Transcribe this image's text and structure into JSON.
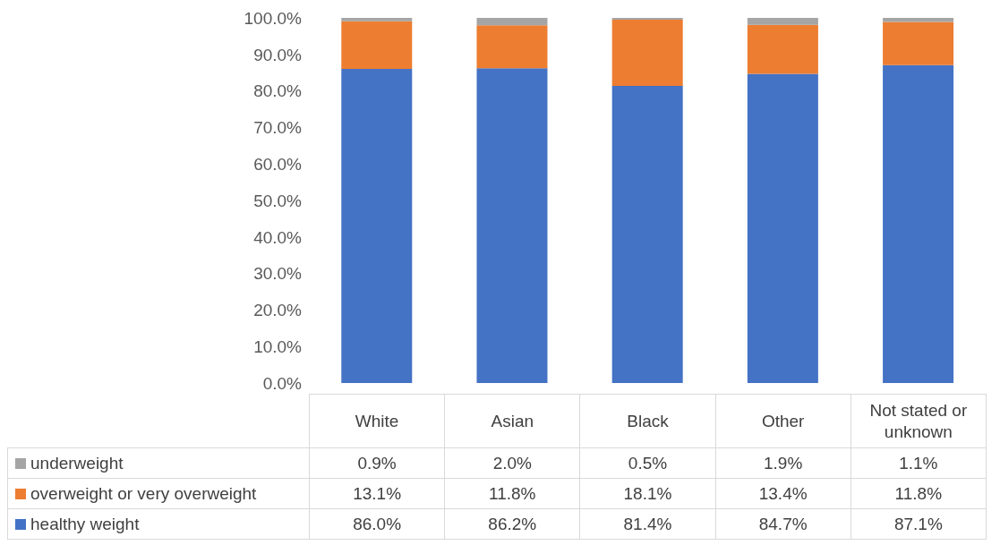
{
  "chart_data": {
    "type": "bar",
    "stacked": true,
    "categories": [
      "White",
      "Asian",
      "Black",
      "Other",
      "Not stated or unknown"
    ],
    "series": [
      {
        "name": "healthy weight",
        "color": "#4472c4",
        "values": [
          86.0,
          86.2,
          81.4,
          84.7,
          87.1
        ],
        "value_labels": [
          "86.0%",
          "86.2%",
          "81.4%",
          "84.7%",
          "87.1%"
        ]
      },
      {
        "name": "overweight or very overweight",
        "color": "#ed7d31",
        "values": [
          13.1,
          11.8,
          18.1,
          13.4,
          11.8
        ],
        "value_labels": [
          "13.1%",
          "11.8%",
          "18.1%",
          "13.4%",
          "11.8%"
        ]
      },
      {
        "name": "underweight",
        "color": "#a5a5a5",
        "values": [
          0.9,
          2.0,
          0.5,
          1.9,
          1.1
        ],
        "value_labels": [
          "0.9%",
          "2.0%",
          "0.5%",
          "1.9%",
          "1.1%"
        ]
      }
    ],
    "ylim": [
      0,
      100
    ],
    "yticks": [
      {
        "value": 0,
        "label": "0.0%"
      },
      {
        "value": 10,
        "label": "10.0%"
      },
      {
        "value": 20,
        "label": "20.0%"
      },
      {
        "value": 30,
        "label": "30.0%"
      },
      {
        "value": 40,
        "label": "40.0%"
      },
      {
        "value": 50,
        "label": "50.0%"
      },
      {
        "value": 60,
        "label": "60.0%"
      },
      {
        "value": 70,
        "label": "70.0%"
      },
      {
        "value": 80,
        "label": "80.0%"
      },
      {
        "value": 90,
        "label": "90.0%"
      },
      {
        "value": 100,
        "label": "100.0%"
      }
    ],
    "grid": false,
    "legend": "bottom"
  }
}
